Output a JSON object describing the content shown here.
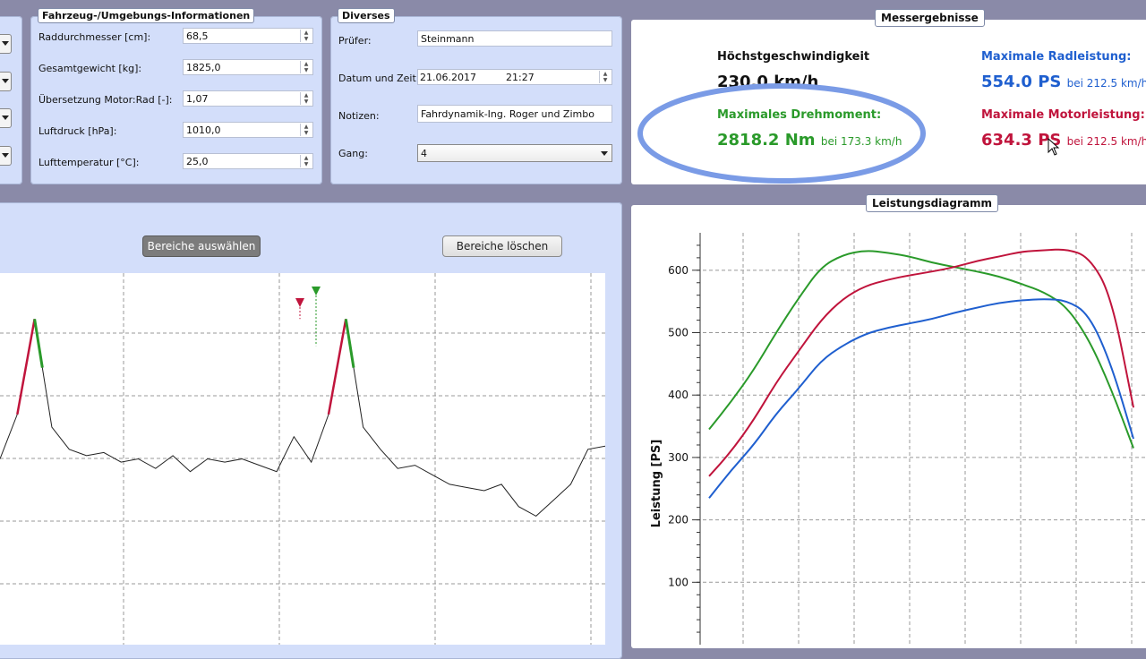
{
  "vehicle": {
    "title": "Fahrzeug-/Umgebungs-Informationen",
    "fields": [
      {
        "label": "Raddurchmesser [cm]:",
        "value": "68,5"
      },
      {
        "label": "Gesamtgewicht [kg]:",
        "value": "1825,0"
      },
      {
        "label": "Übersetzung Motor:Rad [-]:",
        "value": "1,07"
      },
      {
        "label": "Luftdruck [hPa]:",
        "value": "1010,0"
      },
      {
        "label": "Lufttemperatur [°C]:",
        "value": "25,0"
      }
    ]
  },
  "misc": {
    "title": "Diverses",
    "pruefer_label": "Prüfer:",
    "pruefer_value": "Steinmann",
    "datetime_label": "Datum und Zeit:",
    "date_value": "21.06.2017",
    "time_value": "21:27",
    "notes_label": "Notizen:",
    "notes_value": "Fahrdynamik-Ing. Roger und Zimbo",
    "gear_label": "Gang:",
    "gear_value": "4"
  },
  "results": {
    "title": "Messergebnisse",
    "top_speed_label": "Höchstgeschwindigkeit",
    "top_speed_value": "230.0 km/h",
    "torque_label": "Maximales Drehmoment:",
    "torque_value": "2818.2 Nm",
    "torque_at": "bei 173.3 km/h",
    "wheel_power_label": "Maximale Radleistung:",
    "wheel_power_value": "554.0 PS",
    "wheel_power_at": "bei 212.5 km/h",
    "engine_power_label": "Maximale Motorleistung:",
    "engine_power_value": "634.3 PS",
    "engine_power_at": "bei 212.5 km/h"
  },
  "range_panel": {
    "select_button": "Bereiche auswählen",
    "clear_button": "Bereiche löschen"
  },
  "colors": {
    "wheel": "#1f5fcf",
    "engine": "#c0143c",
    "torque": "#2a9a2a",
    "highlight_ellipse": "#7a9be6"
  },
  "chart_data": [
    {
      "type": "line",
      "title": "Leistungsdiagramm",
      "ylabel": "Leistung [PS]",
      "yticks": [
        100,
        200,
        300,
        400,
        500,
        600
      ],
      "ylim": [
        0,
        660
      ],
      "grid": true,
      "series": [
        {
          "color": "#2a9a2a",
          "values": [
            345,
            390,
            440,
            500,
            555,
            605,
            625,
            632,
            628,
            622,
            612,
            605,
            598,
            590,
            578,
            565,
            542,
            490,
            410,
            315
          ]
        },
        {
          "color": "#c0143c",
          "values": [
            270,
            310,
            360,
            420,
            470,
            520,
            555,
            575,
            585,
            592,
            598,
            605,
            615,
            622,
            630,
            632,
            634,
            622,
            560,
            380
          ]
        },
        {
          "color": "#1f5fcf",
          "values": [
            235,
            280,
            320,
            370,
            410,
            455,
            480,
            498,
            508,
            515,
            522,
            532,
            540,
            548,
            552,
            554,
            552,
            530,
            450,
            330
          ]
        }
      ]
    },
    {
      "type": "line",
      "title": "",
      "grid": true,
      "series": [
        {
          "color": "#222222",
          "values": [
            250,
            320,
            470,
            300,
            265,
            255,
            260,
            245,
            250,
            235,
            255,
            230,
            250,
            245,
            250,
            240,
            230,
            285,
            245,
            320,
            470,
            300,
            265,
            235,
            240,
            225,
            210,
            205,
            200,
            210,
            175,
            160,
            185,
            210,
            265,
            270
          ]
        }
      ]
    }
  ]
}
